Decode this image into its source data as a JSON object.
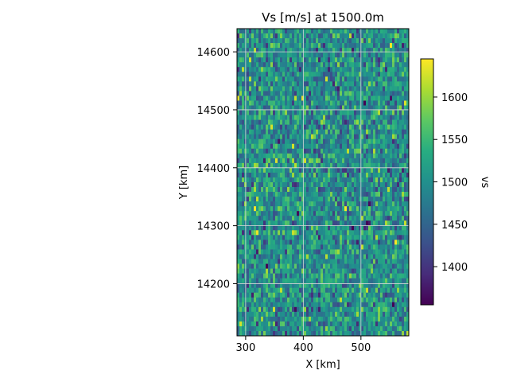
{
  "chart_data": {
    "type": "heatmap",
    "title": "Vs [m/s] at 1500.0m",
    "xlabel": "X [km]",
    "ylabel": "Y [km]",
    "colorbar_label": "vs",
    "colormap": "viridis",
    "xlim": [
      285,
      583
    ],
    "ylim": [
      14110,
      14640
    ],
    "xticks": [
      300,
      400,
      500
    ],
    "yticks": [
      14200,
      14300,
      14400,
      14500,
      14600
    ],
    "value_range": [
      1355,
      1645
    ],
    "colorbar_ticks": [
      1400,
      1450,
      1500,
      1550,
      1600
    ],
    "grid": true,
    "grid_x": [
      300,
      400,
      500
    ],
    "grid_y": [
      14200,
      14300,
      14400,
      14500,
      14600
    ],
    "grid_columns": 72,
    "grid_rows": 64,
    "value_mean": 1500,
    "value_std": 45
  },
  "colors": {
    "grid_line": "#d9d9d9",
    "frame": "#000000"
  }
}
